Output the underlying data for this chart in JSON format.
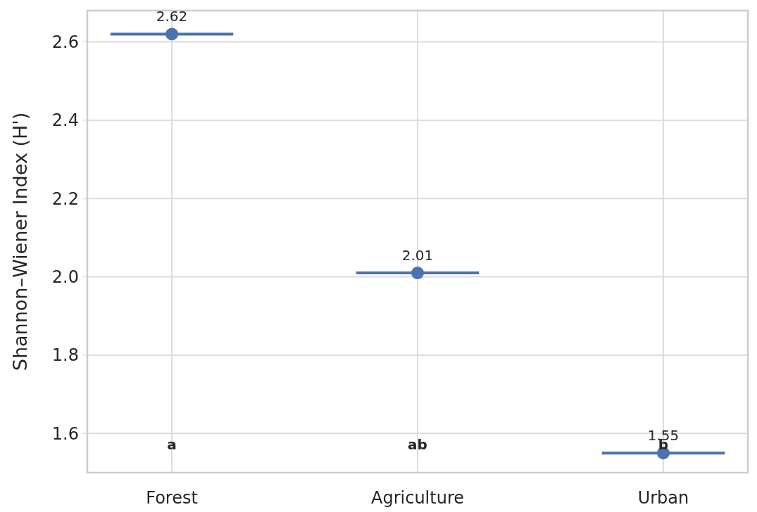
{
  "chart_data": {
    "type": "box",
    "ylabel": "Shannon–Wiener Index (H')",
    "categories": [
      "Forest",
      "Agriculture",
      "Urban"
    ],
    "series": [
      {
        "color": "#4c72b0",
        "boxes": [
          {
            "low": 2.62,
            "q1": 2.62,
            "median": 2.62,
            "q3": 2.62,
            "high": 2.62,
            "mean": 2.62
          },
          {
            "low": 2.01,
            "q1": 2.01,
            "median": 2.01,
            "q3": 2.01,
            "high": 2.01,
            "mean": 2.01
          },
          {
            "low": 1.55,
            "q1": 1.55,
            "median": 1.55,
            "q3": 1.55,
            "high": 1.55,
            "mean": 1.55
          }
        ]
      }
    ],
    "ylim": [
      1.5,
      2.68
    ],
    "yticks": [
      {
        "value": 1.6,
        "label": "1.6"
      },
      {
        "value": 1.8,
        "label": "1.8"
      },
      {
        "value": 2.0,
        "label": "2.0"
      },
      {
        "value": 2.2,
        "label": "2.2"
      },
      {
        "value": 2.4,
        "label": "2.4"
      },
      {
        "value": 2.6,
        "label": "2.6"
      }
    ],
    "grid": true,
    "marker": "circle",
    "annotations": [
      {
        "text": "2.62",
        "x": "Forest",
        "y": 2.62
      },
      {
        "text": "2.01",
        "x": "Agriculture",
        "y": 2.01
      },
      {
        "text": "1.55",
        "x": "Urban",
        "y": 1.55
      },
      "a",
      "ab",
      "b"
    ]
  }
}
